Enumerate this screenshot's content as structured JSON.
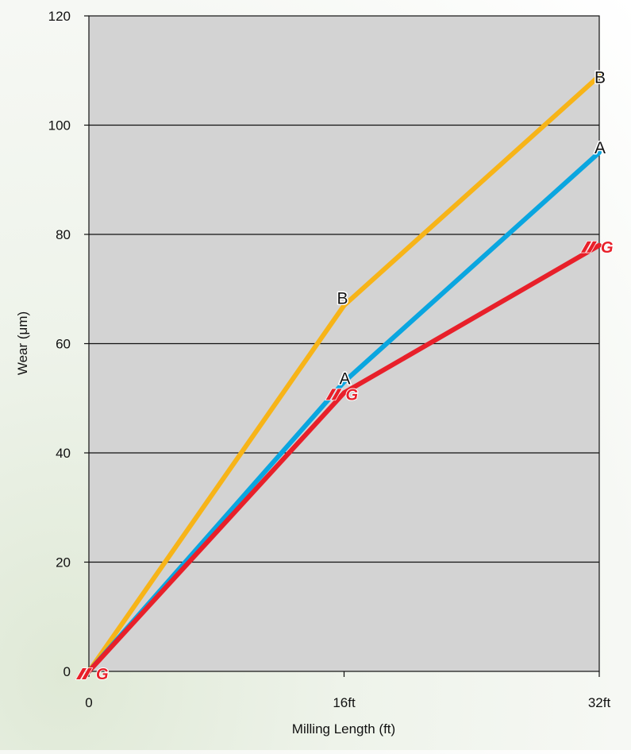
{
  "chart_data": {
    "type": "line",
    "title": "",
    "xlabel": "Milling Length (ft)",
    "ylabel": "Wear (μm)",
    "x": [
      0,
      16,
      32
    ],
    "x_tick_labels": [
      "0",
      "16ft",
      "32ft"
    ],
    "ylim": [
      0,
      120
    ],
    "y_ticks": [
      0,
      20,
      40,
      60,
      80,
      100,
      120
    ],
    "grid": "horizontal",
    "plot_background": "#d3d3d3",
    "series": [
      {
        "name": "B",
        "color": "#f7b418",
        "values": [
          0,
          67,
          109
        ]
      },
      {
        "name": "A",
        "color": "#0aa6e0",
        "values": [
          0,
          53,
          95
        ]
      },
      {
        "name": "YG",
        "color": "#e8202a",
        "values": [
          0,
          51,
          78
        ]
      }
    ],
    "end_labels": {
      "B": "B",
      "A": "A"
    },
    "logo": {
      "name": "yg-logo",
      "text": "YG",
      "color": "#e8202a"
    }
  }
}
